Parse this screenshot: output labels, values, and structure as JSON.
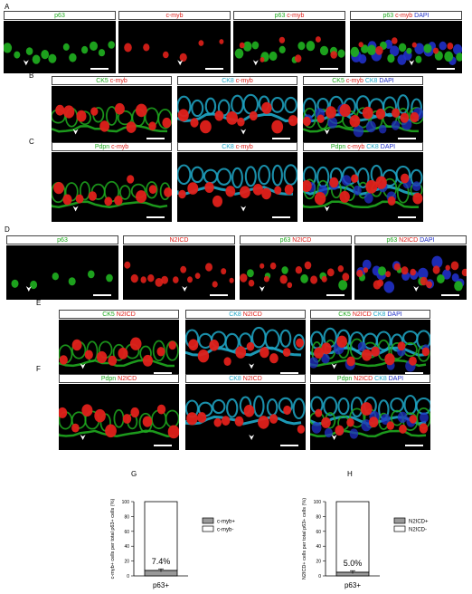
{
  "panels": {
    "A": {
      "letter": "A",
      "headers": [
        [
          {
            "t": "p63",
            "c": "g"
          }
        ],
        [
          {
            "t": "c-myb",
            "c": "r"
          }
        ],
        [
          {
            "t": "p63",
            "c": "g"
          },
          {
            "t": " c-myb",
            "c": "r"
          }
        ],
        [
          {
            "t": "p63",
            "c": "g"
          },
          {
            "t": " c-myb",
            "c": "r"
          },
          {
            "t": " DAPI",
            "c": "b"
          }
        ]
      ]
    },
    "B": {
      "letter": "B",
      "headers": [
        [
          {
            "t": "CK5",
            "c": "g"
          },
          {
            "t": " c-myb",
            "c": "r"
          }
        ],
        [
          {
            "t": "CK8",
            "c": "c"
          },
          {
            "t": " c-myb",
            "c": "r"
          }
        ],
        [
          {
            "t": "CK5",
            "c": "g"
          },
          {
            "t": " c-myb",
            "c": "r"
          },
          {
            "t": " CK8",
            "c": "c"
          },
          {
            "t": " DAPI",
            "c": "b"
          }
        ]
      ]
    },
    "C": {
      "letter": "C",
      "headers": [
        [
          {
            "t": "Pdpn",
            "c": "g"
          },
          {
            "t": " c-myb",
            "c": "r"
          }
        ],
        [
          {
            "t": "CK8",
            "c": "c"
          },
          {
            "t": " c-myb",
            "c": "r"
          }
        ],
        [
          {
            "t": "Pdpn",
            "c": "g"
          },
          {
            "t": " c-myb",
            "c": "r"
          },
          {
            "t": " CK8",
            "c": "c"
          },
          {
            "t": " DAPI",
            "c": "b"
          }
        ]
      ]
    },
    "D": {
      "letter": "D",
      "headers": [
        [
          {
            "t": "p63",
            "c": "g"
          }
        ],
        [
          {
            "t": "N2ICD",
            "c": "r"
          }
        ],
        [
          {
            "t": "p63",
            "c": "g"
          },
          {
            "t": " N2ICD",
            "c": "r"
          }
        ],
        [
          {
            "t": "p63",
            "c": "g"
          },
          {
            "t": " N2ICD",
            "c": "r"
          },
          {
            "t": " DAPI",
            "c": "b"
          }
        ]
      ]
    },
    "E": {
      "letter": "E",
      "headers": [
        [
          {
            "t": "CK5",
            "c": "g"
          },
          {
            "t": " N2ICD",
            "c": "r"
          }
        ],
        [
          {
            "t": "CK8",
            "c": "c"
          },
          {
            "t": " N2ICD",
            "c": "r"
          }
        ],
        [
          {
            "t": "CK5",
            "c": "g"
          },
          {
            "t": " N2ICD",
            "c": "r"
          },
          {
            "t": " CK8",
            "c": "c"
          },
          {
            "t": " DAPI",
            "c": "b"
          }
        ]
      ]
    },
    "F": {
      "letter": "F",
      "headers": [
        [
          {
            "t": "Pdpn",
            "c": "g"
          },
          {
            "t": " N2ICD",
            "c": "r"
          }
        ],
        [
          {
            "t": "CK8",
            "c": "c"
          },
          {
            "t": " N2ICD",
            "c": "r"
          }
        ],
        [
          {
            "t": "Pdpn",
            "c": "g"
          },
          {
            "t": " N2ICD",
            "c": "r"
          },
          {
            "t": " CK8",
            "c": "c"
          },
          {
            "t": " DAPI",
            "c": "b"
          }
        ]
      ]
    }
  },
  "colors": {
    "green": "#1faa1f",
    "red": "#e0201a",
    "cyan": "#1fa8c8",
    "blue": "#2030c8"
  },
  "chart_data": [
    {
      "panel_letter": "G",
      "type": "bar",
      "stacked": true,
      "categories": [
        "p63+"
      ],
      "series": [
        {
          "name": "c-myb+",
          "values": [
            7.4
          ],
          "color": "#999999"
        },
        {
          "name": "c-myb-",
          "values": [
            92.6
          ],
          "color": "#ffffff"
        }
      ],
      "annotation": "7.4%",
      "ylabel": "c-myb+ cells per total p63+ cells (%)",
      "ylim": [
        0,
        100
      ],
      "yticks": [
        0,
        20,
        40,
        60,
        80,
        100
      ],
      "legend_position": "right"
    },
    {
      "panel_letter": "H",
      "type": "bar",
      "stacked": true,
      "categories": [
        "p63+"
      ],
      "series": [
        {
          "name": "N2ICD+",
          "values": [
            5.0
          ],
          "color": "#999999"
        },
        {
          "name": "N2ICD-",
          "values": [
            95.0
          ],
          "color": "#ffffff"
        }
      ],
      "annotation": "5.0%",
      "ylabel": "N2ICD+ cells per total p63+ cells (%)",
      "ylim": [
        0,
        100
      ],
      "yticks": [
        0,
        20,
        40,
        60,
        80,
        100
      ],
      "legend_position": "right"
    }
  ]
}
